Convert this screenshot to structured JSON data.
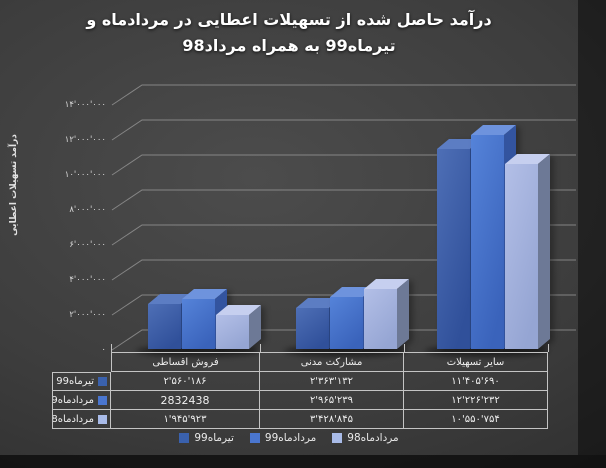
{
  "title": {
    "lines": [
      "درآمد حاصل شده از تسهیلات اعطایی در مردادماه و",
      "تیرماه99 به همراه مرداد98"
    ]
  },
  "chart_data": {
    "type": "bar",
    "style": "3d-clustered-column",
    "title": "درآمد حاصل شده از تسهیلات اعطایی در مردادماه و تیرماه99 به همراه مرداد98",
    "xlabel": "",
    "ylabel": "درآمد تسهیلات اعطایی",
    "categories": [
      "فروش اقساطی",
      "مشارکت مدنی",
      "سایر تسهیلات"
    ],
    "series": [
      {
        "name": "تیرماه99",
        "values": [
          2560186,
          2363132,
          11405690
        ],
        "display": [
          "۲'۵۶۰'۱۸۶",
          "۲'۳۶۳'۱۳۲",
          "۱۱'۴۰۵'۶۹۰"
        ]
      },
      {
        "name": "مردادماه99",
        "values": [
          2832438,
          2965239,
          12226232
        ],
        "display": [
          "2832438",
          "۲'۹۶۵'۲۳۹",
          "۱۲'۲۲۶'۲۳۲"
        ]
      },
      {
        "name": "مردادماه98",
        "values": [
          1945923,
          3428845,
          10550754
        ],
        "display": [
          "۱'۹۴۵'۹۲۳",
          "۳'۴۲۸'۸۴۵",
          "۱۰'۵۵۰'۷۵۴"
        ]
      }
    ],
    "y_axis": {
      "min": 0,
      "max": 14000000,
      "step": 2000000,
      "tick_labels": [
        "۰",
        "۲'۰۰۰'۰۰۰",
        "۴'۰۰۰'۰۰۰",
        "۶'۰۰۰'۰۰۰",
        "۸'۰۰۰'۰۰۰",
        "۱۰'۰۰۰'۰۰۰",
        "۱۲'۰۰۰'۰۰۰",
        "۱۴'۰۰۰'۰۰۰"
      ]
    },
    "legend": {
      "position": "bottom",
      "entries": [
        "تیرماه99",
        "مردادماه99",
        "مردادماه98"
      ]
    },
    "grid": true,
    "data_table_shown": true
  },
  "colors": {
    "background_center": "#4c4c4c",
    "background_edge": "#232323",
    "grid": "#9b9b9b",
    "table_border": "#c4c4c4",
    "text": "#f2f2f2",
    "title_text": "#ffffff",
    "series": [
      {
        "front": "#4e6fb6",
        "front2": "#30509a",
        "top": "#5c7dc3",
        "side": "#2a4583",
        "swatch": "#3a61ad"
      },
      {
        "front": "#5583d9",
        "front2": "#3a63bb",
        "top": "#6e93dd",
        "side": "#33549f",
        "swatch": "#4a76cf"
      },
      {
        "front": "#b3bfe7",
        "front2": "#95a5d3",
        "top": "#c6cfef",
        "side": "#6d7996",
        "swatch": "#a9bbe8"
      }
    ]
  }
}
